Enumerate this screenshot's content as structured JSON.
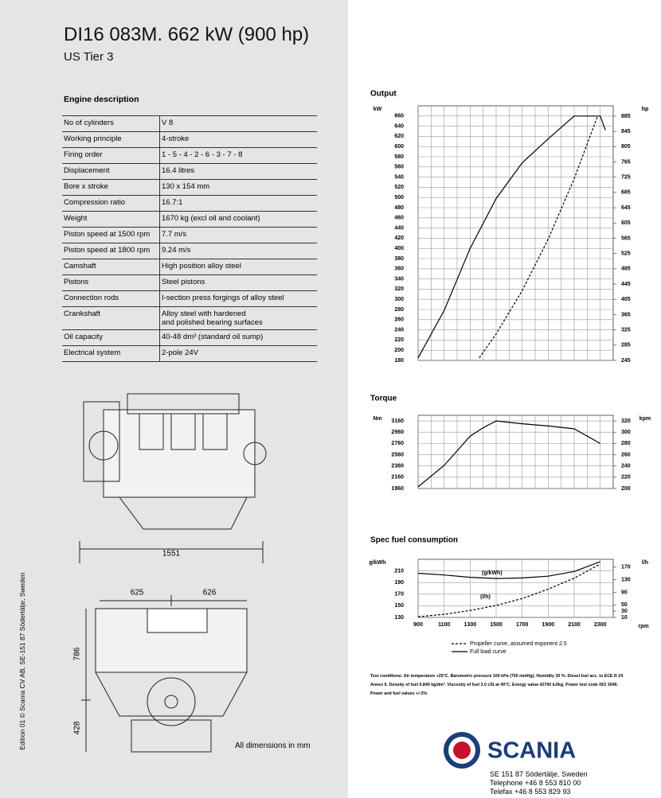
{
  "header": {
    "title": "DI16 083M. 662 kW (900 hp)",
    "subtitle": "US Tier 3"
  },
  "table": {
    "title": "Engine description",
    "rows": [
      [
        "No of cylinders",
        "V 8"
      ],
      [
        "Working principle",
        "4-stroke"
      ],
      [
        "Firing order",
        "1 - 5 - 4 - 2 - 6 - 3 - 7 - 8"
      ],
      [
        "Displacement",
        "16.4 litres"
      ],
      [
        "Bore x stroke",
        "130 x 154 mm"
      ],
      [
        "Compression ratio",
        "16.7:1"
      ],
      [
        "Weight",
        "1670 kg (excl oil and coolant)"
      ],
      [
        "Piston speed at 1500 rpm",
        "7.7 m/s"
      ],
      [
        "Piston speed at 1800 rpm",
        "9.24 m/s"
      ],
      [
        "Camshaft",
        "High position alloy steel"
      ],
      [
        "Pistons",
        "Steel pistons"
      ],
      [
        "Connection rods",
        "I-section press forgings of alloy steel"
      ],
      [
        "Crankshaft",
        [
          "Alloy steel with hardened",
          "and polished bearing surfaces"
        ]
      ],
      [
        "Oil capacity",
        "40-48 dm³ (standard oil sump)"
      ],
      [
        "Electrical system",
        "2-pole 24V"
      ]
    ]
  },
  "drawing": {
    "length": 1551,
    "width_left": 625,
    "width_right": 626,
    "height_upper": 786,
    "height_lower": 428,
    "note": "All dimensions in mm"
  },
  "edition": "Edition 01 © Scania CV AB, SE-151 87 Södertälje, Sweden",
  "chart_data": [
    {
      "type": "line",
      "title": "Output",
      "y_label": "kW",
      "y2_label": "hp",
      "grid": true,
      "xlim": [
        900,
        2400
      ],
      "xticks": [
        900,
        1000,
        1100,
        1200,
        1300,
        1400,
        1500,
        1600,
        1700,
        1800,
        1900,
        2000,
        2100,
        2200,
        2300
      ],
      "xtick_labels": false,
      "ylim": [
        180,
        680
      ],
      "yticks": [
        180,
        200,
        220,
        240,
        260,
        280,
        300,
        320,
        340,
        360,
        380,
        400,
        420,
        440,
        460,
        480,
        500,
        520,
        540,
        560,
        580,
        600,
        620,
        640,
        660
      ],
      "y2lim": [
        245,
        912
      ],
      "y2ticks": [
        245,
        285,
        325,
        365,
        405,
        445,
        485,
        525,
        565,
        605,
        645,
        685,
        725,
        765,
        805,
        845,
        885
      ],
      "series": [
        {
          "color": "#000000",
          "dash": false,
          "x": [
            900,
            1100,
            1300,
            1500,
            1700,
            1900,
            2100,
            2300,
            2340
          ],
          "values": [
            185,
            278,
            400,
            498,
            568,
            615,
            660,
            660,
            632
          ]
        },
        {
          "color": "#000000",
          "dash": true,
          "x": [
            1370,
            1500,
            1700,
            1900,
            2100,
            2280
          ],
          "values": [
            185,
            232,
            317,
            418,
            537,
            660
          ]
        }
      ]
    },
    {
      "type": "line",
      "title": "Torque",
      "y_label": "Nm",
      "y2_label": "kpm",
      "grid": true,
      "xlim": [
        900,
        2400
      ],
      "xticks": [
        900,
        1000,
        1100,
        1200,
        1300,
        1400,
        1500,
        1600,
        1700,
        1800,
        1900,
        2000,
        2100,
        2200,
        2300
      ],
      "xtick_labels": false,
      "ylim": [
        1960,
        3260
      ],
      "yticks": [
        1960,
        2160,
        2360,
        2560,
        2760,
        2960,
        3160
      ],
      "y2lim": [
        200,
        330
      ],
      "y2ticks": [
        200,
        220,
        240,
        260,
        280,
        300,
        320
      ],
      "series": [
        {
          "color": "#000000",
          "dash": false,
          "x": [
            900,
            1100,
            1300,
            1400,
            1500,
            1700,
            1900,
            2100,
            2300
          ],
          "values": [
            1990,
            2370,
            2890,
            3040,
            3160,
            3110,
            3070,
            3020,
            2760
          ]
        }
      ]
    },
    {
      "type": "line",
      "title": "Spec fuel consumption",
      "y_label": "g/kWh",
      "y2_label": "l/h",
      "x_label": "rpm",
      "grid": true,
      "xlim": [
        900,
        2400
      ],
      "xticks": [
        900,
        1100,
        1300,
        1500,
        1700,
        1900,
        2100,
        2300
      ],
      "xtick_labels": true,
      "ylim": [
        130,
        230
      ],
      "yticks": [
        130,
        150,
        170,
        190,
        210
      ],
      "y2lim": [
        10,
        195
      ],
      "y2ticks": [
        10,
        30,
        50,
        90,
        130,
        170
      ],
      "annotations": [
        "(g/kWh)",
        "(l/h)"
      ],
      "series": [
        {
          "name": "Propeller curve, assumed exponent 2.5",
          "color": "#000000",
          "dash": true,
          "axis": "y2",
          "x": [
            900,
            1100,
            1300,
            1500,
            1700,
            1900,
            2100,
            2300
          ],
          "values": [
            12,
            20,
            32,
            48,
            70,
            100,
            135,
            180
          ]
        },
        {
          "name": "Full load curve",
          "color": "#000000",
          "dash": false,
          "x": [
            900,
            1100,
            1300,
            1500,
            1700,
            1900,
            2100,
            2300
          ],
          "values": [
            206,
            203,
            199,
            197,
            198,
            201,
            209,
            226
          ]
        }
      ]
    }
  ],
  "test_conditions": "Test conditions: Air temperature +25°C. Barometric pressure 100 kPa (750 mmHg). Humidity 30 %. Diesel fuel acc. to ECE R 24 Annex 6. Density of fuel 0.840 kg/dm³. Viscosity of fuel 3.0 cSt at 40°C. Energy value 42700 kJ/kg. Power test code ISO 3046. Power and fuel values +/-3%.",
  "footer": {
    "brand": "SCANIA",
    "address": [
      "SE 151 87 Södertälje, Sweden",
      "Telephone +46 8 553 810 00",
      "Telefax +46 8 553 829 93"
    ]
  }
}
